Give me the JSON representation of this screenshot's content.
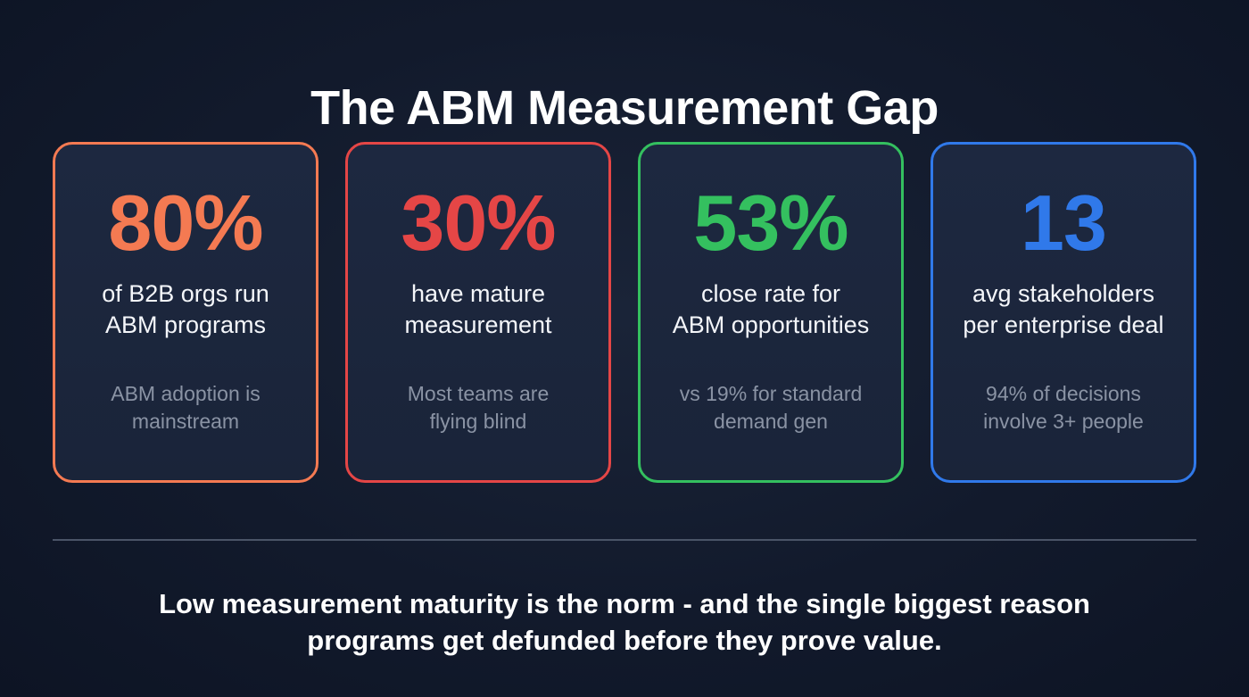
{
  "title": "The ABM Measurement Gap",
  "cards": [
    {
      "value": "80%",
      "label_line1": "of B2B orgs run",
      "label_line2": "ABM programs",
      "note_line1": "ABM adoption is",
      "note_line2": "mainstream",
      "color": "#f47a52"
    },
    {
      "value": "30%",
      "label_line1": "have mature",
      "label_line2": "measurement",
      "note_line1": "Most teams are",
      "note_line2": "flying blind",
      "color": "#e54646"
    },
    {
      "value": "53%",
      "label_line1": "close rate for",
      "label_line2": "ABM opportunities",
      "note_line1": "vs 19% for standard",
      "note_line2": "demand gen",
      "color": "#34c05f"
    },
    {
      "value": "13",
      "label_line1": "avg stakeholders",
      "label_line2": "per enterprise deal",
      "note_line1": "94% of decisions",
      "note_line2": "involve 3+ people",
      "color": "#3079ea"
    }
  ],
  "footer": {
    "line1": "Low measurement maturity is the norm - and the single biggest reason",
    "line2": "programs get defunded before they prove value."
  }
}
